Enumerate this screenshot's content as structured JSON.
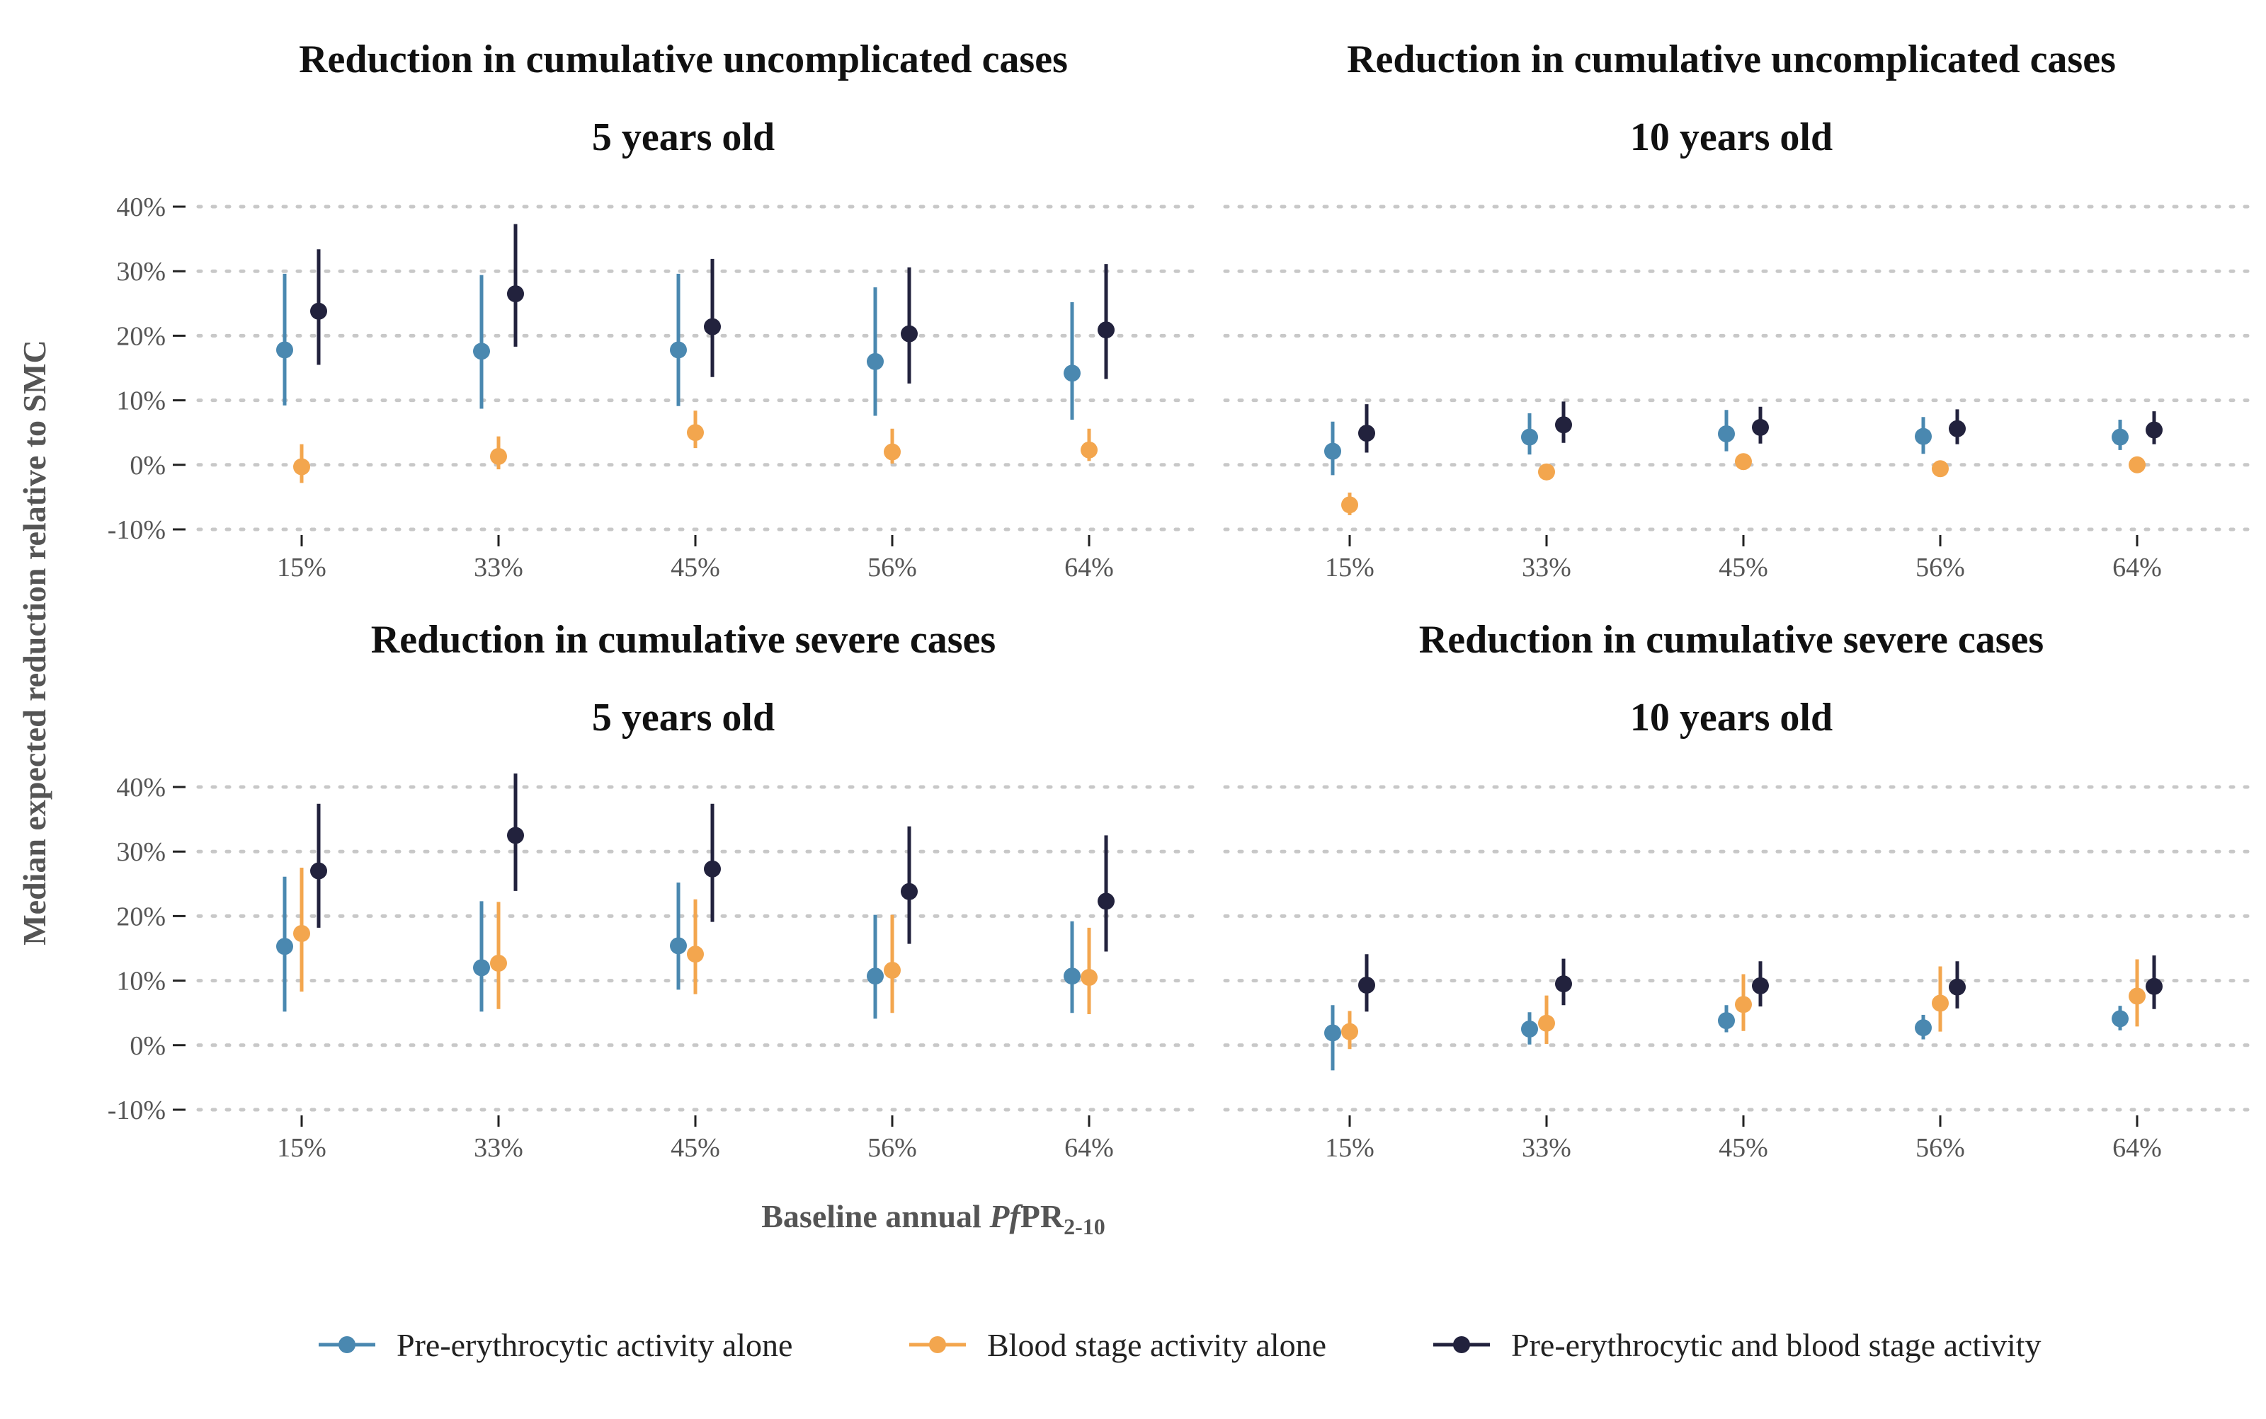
{
  "chart_data": {
    "type": "scatter",
    "y_axis_title": "Median expected reduction relative to SMC",
    "x_axis_title": {
      "prefix": "Baseline annual ",
      "italic": "Pf",
      "main": "PR",
      "subscript": "2-10"
    },
    "y_ticks": [
      "40%",
      "30%",
      "20%",
      "10%",
      "0%",
      "-10%"
    ],
    "y_tick_values": [
      40,
      30,
      20,
      10,
      0,
      -10
    ],
    "ylim": [
      -10,
      40
    ],
    "grid": "horizontal dotted",
    "legend_position": "bottom",
    "colors": {
      "pre": "#4a88b0",
      "blood": "#f3a64e",
      "both": "#22223d"
    },
    "series": [
      {
        "key": "pre",
        "name": "Pre-erythrocytic activity alone"
      },
      {
        "key": "blood",
        "name": "Blood stage activity alone"
      },
      {
        "key": "both",
        "name": "Pre-erythrocytic and blood stage activity"
      }
    ],
    "categories": [
      "15%",
      "33%",
      "45%",
      "56%",
      "64%"
    ],
    "panels": [
      {
        "title_line1": "Reduction in cumulative uncomplicated cases",
        "title_line2": "5 years old",
        "data": {
          "pre": [
            [
              17.8,
              9.2,
              29.6
            ],
            [
              17.6,
              8.7,
              29.4
            ],
            [
              17.8,
              9.1,
              29.6
            ],
            [
              16.0,
              7.6,
              27.5
            ],
            [
              14.2,
              7.0,
              25.2
            ]
          ],
          "blood": [
            [
              -0.3,
              -2.8,
              3.2
            ],
            [
              1.3,
              -0.7,
              4.4
            ],
            [
              5.0,
              2.6,
              8.4
            ],
            [
              2.0,
              0.2,
              5.6
            ],
            [
              2.3,
              0.6,
              5.6
            ]
          ],
          "both": [
            [
              23.8,
              15.5,
              33.4
            ],
            [
              26.5,
              18.3,
              37.3
            ],
            [
              21.4,
              13.6,
              31.9
            ],
            [
              20.3,
              12.6,
              30.6
            ],
            [
              20.9,
              13.3,
              31.1
            ]
          ]
        }
      },
      {
        "title_line1": "Reduction in cumulative uncomplicated cases",
        "title_line2": "10 years old",
        "data": {
          "pre": [
            [
              2.1,
              -1.6,
              6.7
            ],
            [
              4.3,
              1.6,
              8.0
            ],
            [
              4.8,
              2.1,
              8.5
            ],
            [
              4.4,
              1.7,
              7.4
            ],
            [
              4.3,
              2.3,
              7.0
            ]
          ],
          "blood": [
            [
              -6.2,
              -7.8,
              -4.3
            ],
            [
              -1.1,
              -2.0,
              -0.1
            ],
            [
              0.5,
              -0.2,
              1.2
            ],
            [
              -0.6,
              -1.2,
              0.2
            ],
            [
              0.0,
              -0.6,
              0.8
            ]
          ],
          "both": [
            [
              4.9,
              1.9,
              9.4
            ],
            [
              6.2,
              3.4,
              9.8
            ],
            [
              5.8,
              3.3,
              9.0
            ],
            [
              5.6,
              3.2,
              8.6
            ],
            [
              5.4,
              3.2,
              8.3
            ]
          ]
        }
      },
      {
        "title_line1": "Reduction in cumulative severe cases",
        "title_line2": "5 years old",
        "data": {
          "pre": [
            [
              15.3,
              5.2,
              26.1
            ],
            [
              12.0,
              5.2,
              22.3
            ],
            [
              15.4,
              8.6,
              25.2
            ],
            [
              10.7,
              4.1,
              20.2
            ],
            [
              10.7,
              5.0,
              19.2
            ]
          ],
          "blood": [
            [
              17.3,
              8.3,
              27.5
            ],
            [
              12.7,
              5.6,
              22.2
            ],
            [
              14.1,
              7.9,
              22.6
            ],
            [
              11.6,
              5.0,
              20.2
            ],
            [
              10.5,
              4.8,
              18.2
            ]
          ],
          "both": [
            [
              27.0,
              18.2,
              37.4
            ],
            [
              32.5,
              23.9,
              42.1
            ],
            [
              27.3,
              19.1,
              37.4
            ],
            [
              23.8,
              15.7,
              33.9
            ],
            [
              22.3,
              14.5,
              32.5
            ]
          ]
        }
      },
      {
        "title_line1": "Reduction in cumulative severe cases",
        "title_line2": "10 years old",
        "data": {
          "pre": [
            [
              1.9,
              -3.9,
              6.2
            ],
            [
              2.5,
              0.1,
              5.1
            ],
            [
              3.8,
              2.0,
              6.2
            ],
            [
              2.7,
              0.9,
              4.7
            ],
            [
              4.1,
              2.3,
              6.1
            ]
          ],
          "blood": [
            [
              2.1,
              -0.6,
              5.3
            ],
            [
              3.4,
              0.2,
              7.7
            ],
            [
              6.3,
              2.2,
              11.0
            ],
            [
              6.5,
              2.1,
              12.2
            ],
            [
              7.6,
              2.9,
              13.3
            ]
          ],
          "both": [
            [
              9.3,
              5.2,
              14.1
            ],
            [
              9.5,
              6.2,
              13.4
            ],
            [
              9.2,
              6.0,
              13.0
            ],
            [
              9.0,
              5.7,
              13.0
            ],
            [
              9.1,
              5.6,
              13.9
            ]
          ]
        }
      }
    ]
  }
}
